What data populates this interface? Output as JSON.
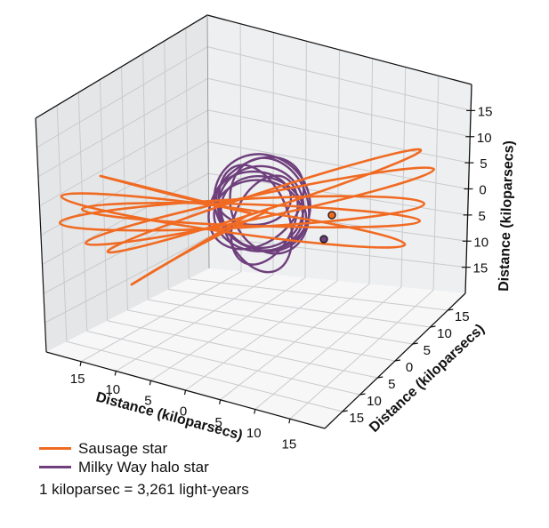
{
  "colors": {
    "sausage": "#f06a22",
    "halo": "#6e3f7c",
    "pane_left": "#e6e7e9",
    "pane_back": "#eeeff0",
    "pane_floor": "#f6f6f7",
    "grid": "#c6c7c9",
    "axis": "#111111"
  },
  "legend": {
    "items": [
      {
        "label": "Sausage star",
        "color": "#f06a22"
      },
      {
        "label": "Milky Way halo star",
        "color": "#6e3f7c"
      }
    ]
  },
  "note": "1 kiloparsec = 3,261 light-years",
  "chart_data": {
    "type": "line3d",
    "title": "",
    "xlabel": "Distance (kiloparsecs)",
    "ylabel": "Distance (kiloparsecs)",
    "zlabel": "Distance (kiloparsecs)",
    "xlim": [
      -20,
      20
    ],
    "ylim": [
      -20,
      20
    ],
    "zlim": [
      -20,
      20
    ],
    "x_ticks": [
      "15",
      "10",
      "5",
      "0",
      "5",
      "10",
      "15"
    ],
    "y_ticks": [
      "15",
      "10",
      "5",
      "0",
      "5",
      "10",
      "15"
    ],
    "z_ticks": [
      "15",
      "10",
      "5",
      "0",
      "5",
      "10",
      "15"
    ],
    "grid": true,
    "legend_position": "below-left",
    "series": [
      {
        "name": "Sausage star",
        "color": "#f06a22",
        "description": "Highly radial, elongated rosette orbit reaching ~±20 kpc along one axis, confined near the galactic plane; endpoint marked with orange circle"
      },
      {
        "name": "Milky Way halo star",
        "color": "#6e3f7c",
        "description": "Compact tangled orbit within ~±8 kpc of the center; endpoint marked with purple circle"
      }
    ]
  }
}
